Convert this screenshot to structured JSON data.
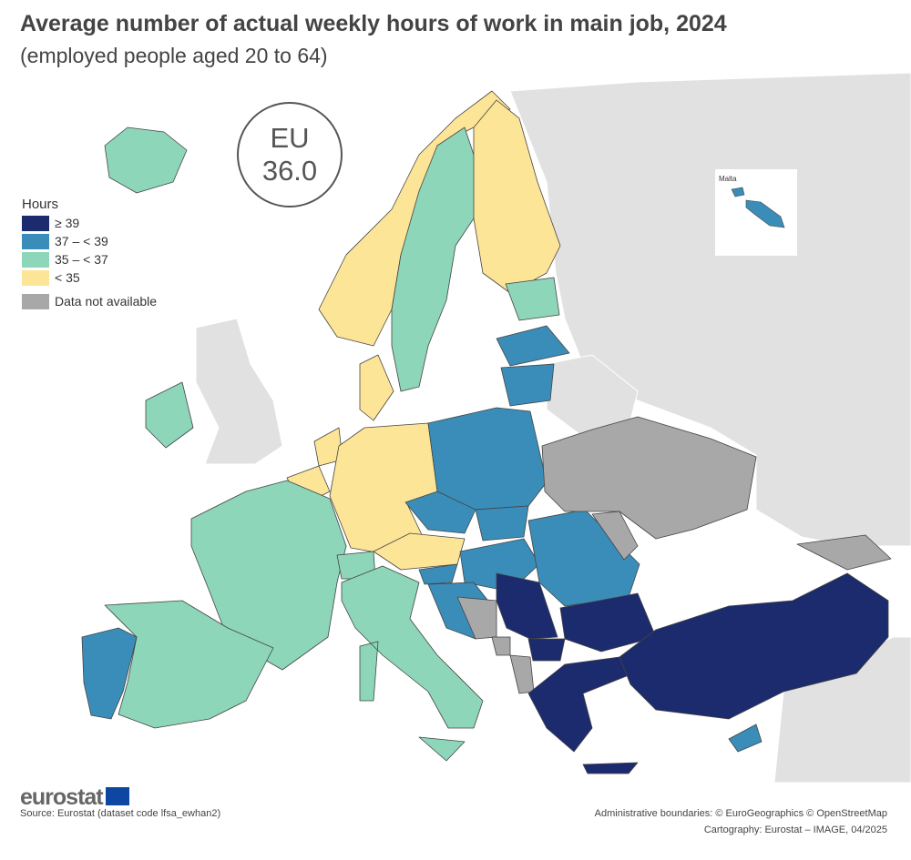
{
  "title": "Average number of actual weekly hours of work in main job, 2024",
  "subtitle": "(employed people aged 20 to 64)",
  "eu_badge": {
    "label": "EU",
    "value": "36.0"
  },
  "legend": {
    "title": "Hours",
    "items": [
      {
        "label": "≥ 39",
        "color": "#1c2a6e"
      },
      {
        "label": "37 – < 39",
        "color": "#3a8db8"
      },
      {
        "label": "35 – < 37",
        "color": "#8dd6b9"
      },
      {
        "label": "< 35",
        "color": "#fde597"
      },
      {
        "label": "Data not available",
        "color": "#a8a8a8"
      }
    ]
  },
  "colors": {
    "sea": "#ffffff",
    "other_land": "#e1e1e1",
    "border": "#444444"
  },
  "inset": {
    "label": "Malta",
    "class": "37 – < 39"
  },
  "countries": [
    {
      "name": "Iceland",
      "class": "35 – < 37"
    },
    {
      "name": "Norway",
      "class": "< 35"
    },
    {
      "name": "Sweden",
      "class": "35 – < 37"
    },
    {
      "name": "Finland",
      "class": "< 35"
    },
    {
      "name": "Estonia",
      "class": "35 – < 37"
    },
    {
      "name": "Latvia",
      "class": "37 – < 39"
    },
    {
      "name": "Lithuania",
      "class": "37 – < 39"
    },
    {
      "name": "Denmark",
      "class": "< 35"
    },
    {
      "name": "Ireland",
      "class": "35 – < 37"
    },
    {
      "name": "Netherlands",
      "class": "< 35"
    },
    {
      "name": "Belgium",
      "class": "< 35"
    },
    {
      "name": "Germany",
      "class": "< 35"
    },
    {
      "name": "Poland",
      "class": "37 – < 39"
    },
    {
      "name": "Czechia",
      "class": "37 – < 39"
    },
    {
      "name": "Slovakia",
      "class": "37 – < 39"
    },
    {
      "name": "Austria",
      "class": "< 35"
    },
    {
      "name": "Hungary",
      "class": "37 – < 39"
    },
    {
      "name": "Romania",
      "class": "37 – < 39"
    },
    {
      "name": "Bulgaria",
      "class": "≥ 39"
    },
    {
      "name": "France",
      "class": "35 – < 37"
    },
    {
      "name": "Switzerland",
      "class": "35 – < 37"
    },
    {
      "name": "Italy",
      "class": "35 – < 37"
    },
    {
      "name": "Slovenia",
      "class": "37 – < 39"
    },
    {
      "name": "Croatia",
      "class": "37 – < 39"
    },
    {
      "name": "Bosnia and Herzegovina",
      "class": "Data not available"
    },
    {
      "name": "Serbia",
      "class": "≥ 39"
    },
    {
      "name": "Montenegro",
      "class": "Data not available"
    },
    {
      "name": "North Macedonia",
      "class": "≥ 39"
    },
    {
      "name": "Albania",
      "class": "Data not available"
    },
    {
      "name": "Greece",
      "class": "≥ 39"
    },
    {
      "name": "Türkiye",
      "class": "≥ 39"
    },
    {
      "name": "Cyprus",
      "class": "37 – < 39"
    },
    {
      "name": "Spain",
      "class": "35 – < 37"
    },
    {
      "name": "Portugal",
      "class": "37 – < 39"
    },
    {
      "name": "Ukraine",
      "class": "Data not available"
    },
    {
      "name": "Moldova",
      "class": "Data not available"
    },
    {
      "name": "Georgia",
      "class": "Data not available"
    }
  ],
  "footer": {
    "brand": "eurostat",
    "source": "Source: Eurostat (dataset code lfsa_ewhan2)",
    "boundaries": "Administrative boundaries: © EuroGeographics © OpenStreetMap",
    "cartography": "Cartography: Eurostat – IMAGE, 04/2025"
  }
}
